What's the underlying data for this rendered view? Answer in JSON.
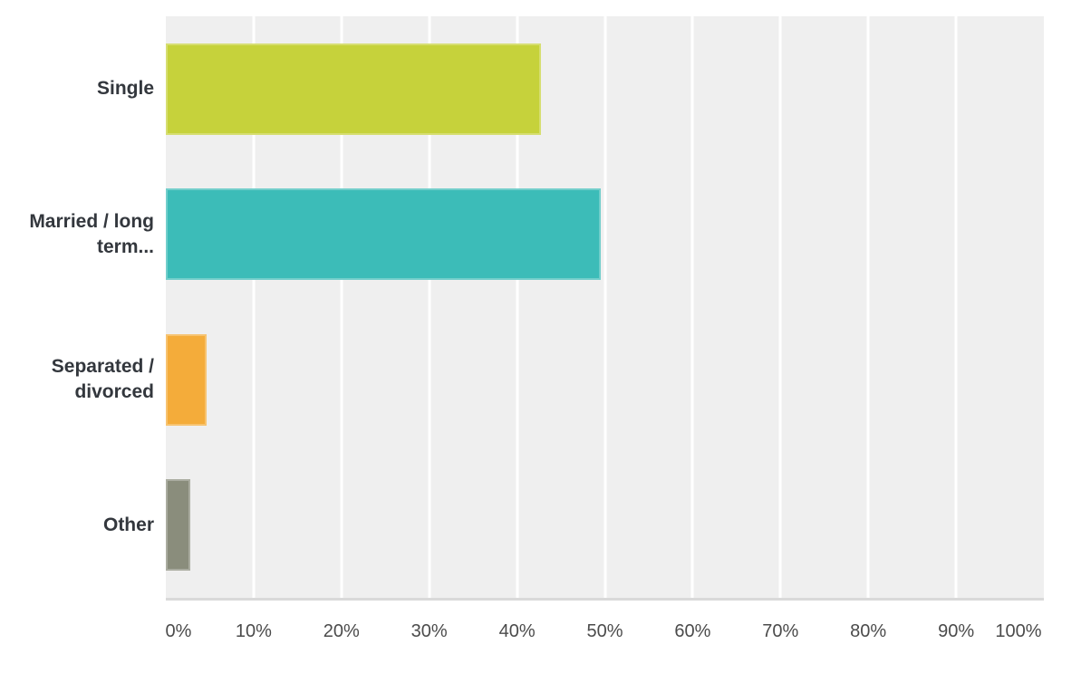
{
  "chart_data": {
    "type": "bar",
    "orientation": "horizontal",
    "title": "",
    "xlabel": "",
    "ylabel": "",
    "xlim": [
      0,
      100
    ],
    "grid": true,
    "legend": false,
    "value_unit": "%",
    "categories": [
      {
        "name": "single",
        "label": "Single",
        "display": "Single",
        "value": 42.7,
        "color": "#c6d23b"
      },
      {
        "name": "married-long-term",
        "label": "Married / long term...",
        "display": "Married / long\nterm...",
        "value": 49.5,
        "color": "#3cbcb8"
      },
      {
        "name": "separated-divorced",
        "label": "Separated / divorced",
        "display": "Separated /\ndivorced",
        "value": 4.6,
        "color": "#f4ac3a"
      },
      {
        "name": "other",
        "label": "Other",
        "display": "Other",
        "value": 2.8,
        "color": "#8a8d7c"
      }
    ],
    "x_ticks": [
      {
        "label": "0%",
        "value": 0
      },
      {
        "label": "10%",
        "value": 10
      },
      {
        "label": "20%",
        "value": 20
      },
      {
        "label": "30%",
        "value": 30
      },
      {
        "label": "40%",
        "value": 40
      },
      {
        "label": "50%",
        "value": 50
      },
      {
        "label": "60%",
        "value": 60
      },
      {
        "label": "70%",
        "value": 70
      },
      {
        "label": "80%",
        "value": 80
      },
      {
        "label": "90%",
        "value": 90
      },
      {
        "label": "100%",
        "value": 100
      }
    ],
    "colors": {
      "page_background": "#ffffff",
      "plot_background": "#efefef",
      "gridline": "#ffffff",
      "axis_baseline": "#d9d9d9",
      "axis_label_text": "#4b4b4b",
      "category_label_text": "#33373d"
    }
  }
}
